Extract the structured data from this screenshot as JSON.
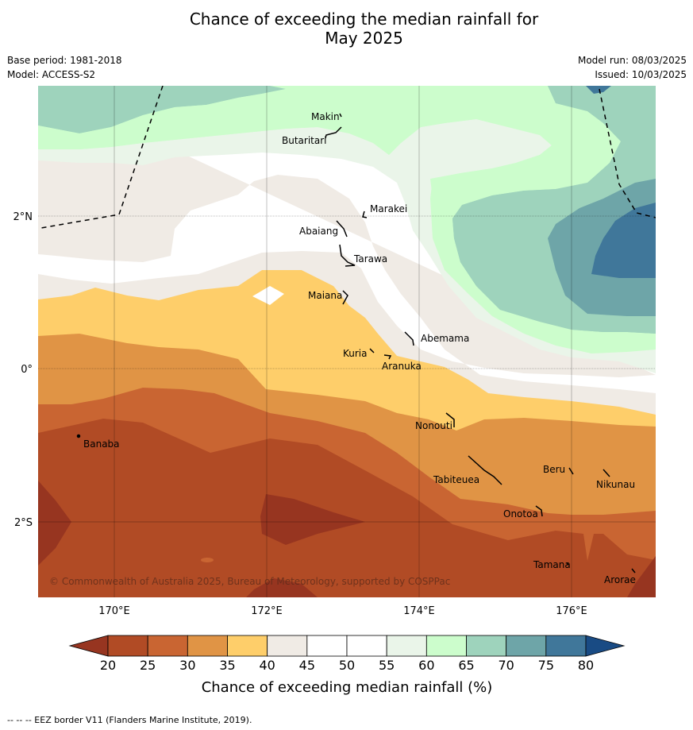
{
  "title": {
    "line1": "Chance of exceeding the median rainfall for",
    "line2": "May 2025"
  },
  "meta": {
    "base_period": "Base period: 1981-2018",
    "model": "Model: ACCESS-S2",
    "model_run": "Model run: 08/03/2025",
    "issued": "Issued: 10/03/2025"
  },
  "axes": {
    "x_ticks": [
      "170°E",
      "172°E",
      "174°E",
      "176°E"
    ],
    "y_ticks": [
      "2°N",
      "0°",
      "2°S"
    ]
  },
  "places": [
    "Makin",
    "Butaritari",
    "Marakei",
    "Abaiang",
    "Tarawa",
    "Maiana",
    "Abemama",
    "Kuria",
    "Aranuka",
    "Nonouti",
    "Banaba",
    "Tabiteuea",
    "Beru",
    "Nikunau",
    "Onotoa",
    "Tamana",
    "Arorae"
  ],
  "copyright": "© Commonwealth of Australia 2025, Bureau of Meteorology, supported by COSPPac",
  "colorbar": {
    "ticks": [
      "20",
      "25",
      "30",
      "35",
      "40",
      "45",
      "50",
      "55",
      "60",
      "65",
      "70",
      "75",
      "80"
    ],
    "label": "Chance of exceeding median rainfall (%)",
    "colors": [
      "#973520",
      "#b14b25",
      "#c96532",
      "#e09445",
      "#fece6a",
      "#f0ebe5",
      "#ffffff",
      "#ffffff",
      "#eaf5e9",
      "#ccfdcc",
      "#9ed3bc",
      "#6ea5a8",
      "#40779a",
      "#194b84"
    ]
  },
  "footnote": "--  --  -- EEZ border V11 (Flanders Marine Institute, 2019)."
}
